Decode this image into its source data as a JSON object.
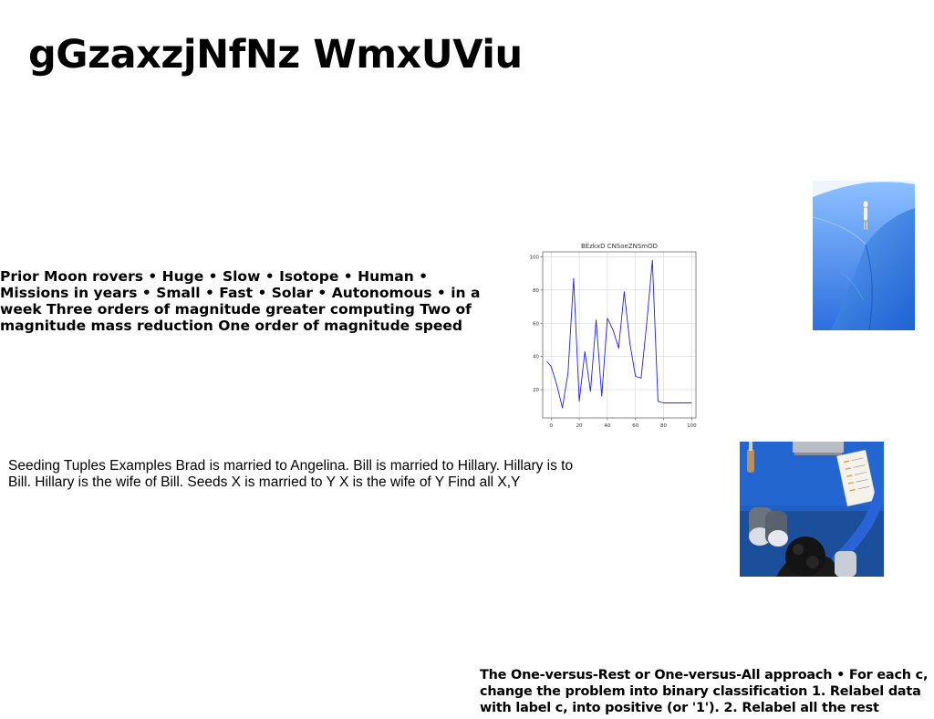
{
  "page": {
    "title": "gGzaxzjNfNz WmxUViu"
  },
  "blocks": {
    "rovers": "Prior Moon rovers • Huge • Slow • Isotope • Human • Missions in years • Small • Fast • Solar • Autonomous • in a week Three orders of magnitude greater computing Two of magnitude mass reduction One order of magnitude speed",
    "tuples": "Seeding Tuples Examples Brad is married to Angelina. Bill is married to Hillary. Hillary is to Bill. Hillary is the wife of Bill. Seeds X is married to Y X is the wife of Y Find all X,Y",
    "ovr": "The One-versus-Rest or One-versus-All approach • For each c, change the problem into binary classification 1. Relabel data with label c, into positive (or '1'). 2. Relabel all the rest"
  },
  "chart_data": {
    "type": "line",
    "title": "BEzkxD CNSoeZNSmOD",
    "xlabel": "",
    "ylabel": "",
    "xlim": [
      -6,
      103
    ],
    "ylim": [
      3,
      103
    ],
    "xticks": [
      0,
      20,
      40,
      60,
      80,
      100
    ],
    "yticks": [
      20,
      40,
      60,
      80,
      100
    ],
    "grid": true,
    "series": [
      {
        "color": "#2222dd",
        "x": [
          -3,
          0,
          4,
          8,
          12,
          16,
          20,
          24,
          28,
          32,
          36,
          40,
          44,
          48,
          52,
          56,
          60,
          64,
          68,
          72,
          76,
          80,
          84,
          88,
          92,
          96,
          100
        ],
        "y": [
          37,
          34,
          23,
          9,
          30,
          87,
          13,
          43,
          19,
          62,
          16,
          63,
          56,
          45,
          79,
          48,
          28,
          27,
          60,
          98,
          13,
          12,
          12,
          12,
          12,
          12,
          12
        ]
      }
    ]
  },
  "images": {
    "dune_icon": "photo-blue-dune-icon",
    "desk_icon": "photo-desk-topview-icon"
  }
}
